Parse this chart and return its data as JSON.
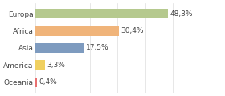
{
  "categories": [
    "Europa",
    "Africa",
    "Asia",
    "America",
    "Oceania"
  ],
  "values": [
    48.3,
    30.4,
    17.5,
    3.3,
    0.4
  ],
  "labels": [
    "48,3%",
    "30,4%",
    "17,5%",
    "3,3%",
    "0,4%"
  ],
  "colors": [
    "#b5c98e",
    "#f0b47a",
    "#7e9bbf",
    "#f0d060",
    "#e87070"
  ],
  "background_color": "#ffffff",
  "bar_height": 0.6,
  "label_fontsize": 6.5,
  "tick_fontsize": 6.5,
  "xlim": [
    0,
    68
  ],
  "figsize": [
    2.8,
    1.2
  ],
  "dpi": 100
}
